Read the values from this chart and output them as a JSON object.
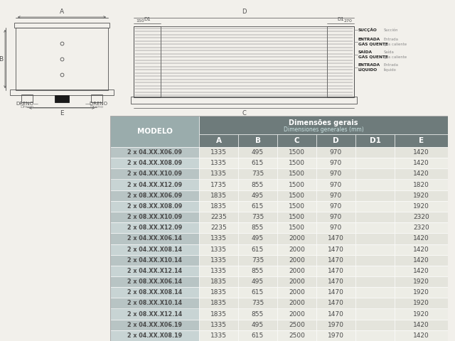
{
  "header_title": "Dimensões gerais",
  "header_subtitle": "Dimensiones generales (mm)",
  "col_headers": [
    "A",
    "B",
    "C",
    "D",
    "D1",
    "E"
  ],
  "model_col": "MODELO",
  "rows": [
    [
      "2 x 04.XX.X06.09",
      "1335",
      "495",
      "1500",
      "970",
      "",
      "1420"
    ],
    [
      "2 x 04.XX.X08.09",
      "1335",
      "615",
      "1500",
      "970",
      "",
      "1420"
    ],
    [
      "2 x 04.XX.X10.09",
      "1335",
      "735",
      "1500",
      "970",
      "",
      "1420"
    ],
    [
      "2 x 04.XX.X12.09",
      "1735",
      "855",
      "1500",
      "970",
      "",
      "1820"
    ],
    [
      "2 x 08.XX.X06.09",
      "1835",
      "495",
      "1500",
      "970",
      "",
      "1920"
    ],
    [
      "2 x 08.XX.X08.09",
      "1835",
      "615",
      "1500",
      "970",
      "",
      "1920"
    ],
    [
      "2 x 08.XX.X10.09",
      "2235",
      "735",
      "1500",
      "970",
      "",
      "2320"
    ],
    [
      "2 x 08.XX.X12.09",
      "2235",
      "855",
      "1500",
      "970",
      "",
      "2320"
    ],
    [
      "2 x 04.XX.X06.14",
      "1335",
      "495",
      "2000",
      "1470",
      "",
      "1420"
    ],
    [
      "2 x 04.XX.X08.14",
      "1335",
      "615",
      "2000",
      "1470",
      "",
      "1420"
    ],
    [
      "2 x 04.XX.X10.14",
      "1335",
      "735",
      "2000",
      "1470",
      "",
      "1420"
    ],
    [
      "2 x 04.XX.X12.14",
      "1335",
      "855",
      "2000",
      "1470",
      "",
      "1420"
    ],
    [
      "2 x 08.XX.X06.14",
      "1835",
      "495",
      "2000",
      "1470",
      "",
      "1920"
    ],
    [
      "2 x 08.XX.X08.14",
      "1835",
      "615",
      "2000",
      "1470",
      "",
      "1920"
    ],
    [
      "2 x 08.XX.X10.14",
      "1835",
      "735",
      "2000",
      "1470",
      "",
      "1920"
    ],
    [
      "2 x 08.XX.X12.14",
      "1835",
      "855",
      "2000",
      "1470",
      "",
      "1920"
    ],
    [
      "2 x 04.XX.X06.19",
      "1335",
      "495",
      "2500",
      "1970",
      "",
      "1420"
    ],
    [
      "2 x 04.XX.X08.19",
      "1335",
      "615",
      "2500",
      "1970",
      "",
      "1420"
    ]
  ],
  "bg_color": "#f2f0eb",
  "header_bg": "#6e7b7b",
  "model_bg": "#9aacac",
  "row_even_model": "#b8c4c4",
  "row_odd_model": "#c8d4d4",
  "row_even_data": "#e4e4dc",
  "row_odd_data": "#ededE6",
  "col_header_bg": "#6e7b7b",
  "cell_text": "#555555",
  "border_color": "#ffffff",
  "lc": "#505050"
}
